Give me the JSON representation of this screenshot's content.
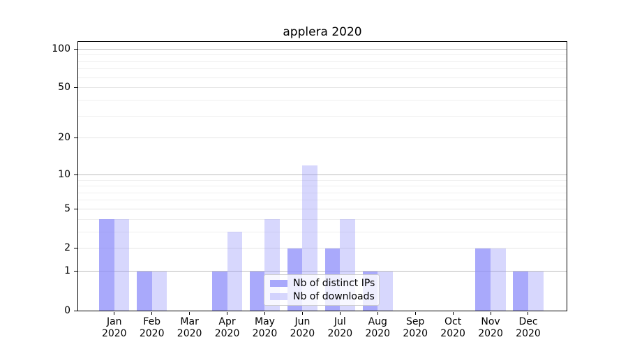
{
  "chart_data": {
    "type": "bar",
    "title": "applera 2020",
    "categories": [
      "Jan",
      "Feb",
      "Mar",
      "Apr",
      "May",
      "Jun",
      "Jul",
      "Aug",
      "Sep",
      "Oct",
      "Nov",
      "Dec"
    ],
    "x_sublabel": "2020",
    "series": [
      {
        "name": "Nb of distinct IPs",
        "fill": "rgba(140,140,250,0.75)",
        "values": [
          4,
          1,
          0,
          1,
          1,
          2,
          2,
          1,
          0,
          0,
          2,
          1
        ]
      },
      {
        "name": "Nb of downloads",
        "fill": "rgba(140,140,250,0.35)",
        "values": [
          4,
          1,
          0,
          3,
          4,
          12,
          4,
          1,
          0,
          0,
          2,
          1
        ]
      }
    ],
    "yscale": "log1p",
    "ylim": [
      0,
      113.6
    ],
    "y_major_ticks": [
      0,
      1,
      2,
      5,
      10,
      20,
      50,
      100
    ],
    "y_power_ticks": [
      1,
      10,
      100
    ],
    "y_minor_ticks": [
      3,
      4,
      6,
      7,
      8,
      9,
      30,
      40,
      60,
      70,
      80,
      90
    ],
    "grid": true,
    "legend_position": "lower center"
  },
  "colors": {
    "bar_primary": "#a9a9f9",
    "bar_secondary": "#d7d7fc",
    "grid_power": "#bcbcbc",
    "grid_major": "#e4e4e4",
    "grid_minor": "#efefef",
    "spine": "#000000",
    "legend_border": "#cccccc",
    "text": "#000000"
  }
}
